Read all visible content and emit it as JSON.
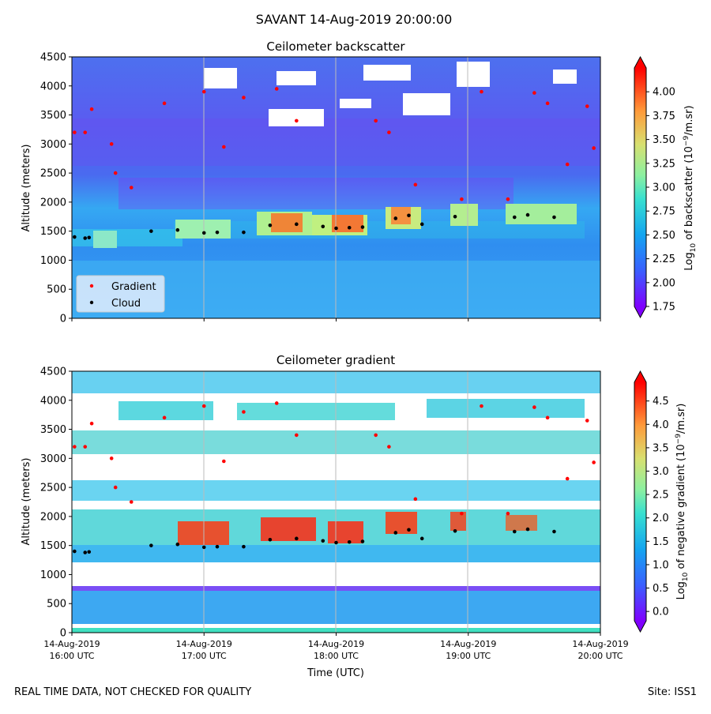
{
  "figure": {
    "suptitle": "SAVANT 14-Aug-2019 20:00:00",
    "footer_left": "REAL TIME DATA, NOT CHECKED FOR QUALITY",
    "footer_right": "Site: ISS1",
    "xlabel": "Time (UTC)",
    "time_ticks": [
      {
        "date": "14-Aug-2019",
        "time": "16:00 UTC"
      },
      {
        "date": "14-Aug-2019",
        "time": "17:00 UTC"
      },
      {
        "date": "14-Aug-2019",
        "time": "18:00 UTC"
      },
      {
        "date": "14-Aug-2019",
        "time": "19:00 UTC"
      },
      {
        "date": "14-Aug-2019",
        "time": "20:00 UTC"
      }
    ]
  },
  "chart_data": [
    {
      "type": "heatmap",
      "title": "Ceilometer backscatter",
      "ylabel": "Altitude (meters)",
      "ylim": [
        0,
        4500
      ],
      "yticks": [
        0,
        500,
        1000,
        1500,
        2000,
        2500,
        3000,
        3500,
        4000,
        4500
      ],
      "xlim": [
        "16:00",
        "20:00"
      ],
      "colorbar": {
        "label": "Log10 of backscatter (10^-9/m.sr)",
        "label_parts": [
          "Log",
          "10",
          " of backscatter (10",
          "−9",
          "/m.sr)"
        ],
        "min": 1.75,
        "max": 4.25,
        "ticks": [
          "1.75",
          "2.00",
          "2.25",
          "2.50",
          "2.75",
          "3.00",
          "3.25",
          "3.50",
          "3.75",
          "4.00"
        ],
        "tick_values": [
          1.75,
          2.0,
          2.25,
          2.5,
          2.75,
          3.0,
          3.25,
          3.5,
          3.75,
          4.0
        ]
      },
      "legend": {
        "location": "lower-left",
        "entries": [
          {
            "label": "Gradient",
            "color": "#ff0000"
          },
          {
            "label": "Cloud",
            "color": "#000000"
          }
        ]
      },
      "cloud_layer": [
        {
          "t": 0.02,
          "alt": 1400
        },
        {
          "t": 0.1,
          "alt": 1380
        },
        {
          "t": 0.13,
          "alt": 1390
        },
        {
          "t": 0.6,
          "alt": 1500
        },
        {
          "t": 0.8,
          "alt": 1520
        },
        {
          "t": 1.0,
          "alt": 1470
        },
        {
          "t": 1.1,
          "alt": 1480
        },
        {
          "t": 1.3,
          "alt": 1480
        },
        {
          "t": 1.5,
          "alt": 1600
        },
        {
          "t": 1.7,
          "alt": 1620
        },
        {
          "t": 1.9,
          "alt": 1580
        },
        {
          "t": 2.0,
          "alt": 1550
        },
        {
          "t": 2.1,
          "alt": 1560
        },
        {
          "t": 2.2,
          "alt": 1570
        },
        {
          "t": 2.45,
          "alt": 1720
        },
        {
          "t": 2.55,
          "alt": 1770
        },
        {
          "t": 2.65,
          "alt": 1620
        },
        {
          "t": 2.9,
          "alt": 1750
        },
        {
          "t": 3.35,
          "alt": 1740
        },
        {
          "t": 3.45,
          "alt": 1780
        },
        {
          "t": 3.65,
          "alt": 1740
        }
      ],
      "gradient_points": [
        {
          "t": 0.02,
          "alt": 3200
        },
        {
          "t": 0.1,
          "alt": 3200
        },
        {
          "t": 0.15,
          "alt": 3600
        },
        {
          "t": 0.3,
          "alt": 3000
        },
        {
          "t": 0.33,
          "alt": 2500
        },
        {
          "t": 0.45,
          "alt": 2250
        },
        {
          "t": 0.7,
          "alt": 3700
        },
        {
          "t": 1.0,
          "alt": 3900
        },
        {
          "t": 1.15,
          "alt": 2950
        },
        {
          "t": 1.3,
          "alt": 3800
        },
        {
          "t": 1.55,
          "alt": 3950
        },
        {
          "t": 1.7,
          "alt": 3400
        },
        {
          "t": 2.3,
          "alt": 3400
        },
        {
          "t": 2.4,
          "alt": 3200
        },
        {
          "t": 2.6,
          "alt": 2300
        },
        {
          "t": 2.95,
          "alt": 2050
        },
        {
          "t": 3.1,
          "alt": 3900
        },
        {
          "t": 3.3,
          "alt": 2050
        },
        {
          "t": 3.5,
          "alt": 3880
        },
        {
          "t": 3.6,
          "alt": 3700
        },
        {
          "t": 3.75,
          "alt": 2650
        },
        {
          "t": 3.9,
          "alt": 3650
        },
        {
          "t": 3.95,
          "alt": 2930
        }
      ]
    },
    {
      "type": "heatmap",
      "title": "Ceilometer gradient",
      "ylabel": "Altitude (meters)",
      "ylim": [
        0,
        4500
      ],
      "yticks": [
        0,
        500,
        1000,
        1500,
        2000,
        2500,
        3000,
        3500,
        4000,
        4500
      ],
      "xlim": [
        "16:00",
        "20:00"
      ],
      "colorbar": {
        "label": "Log10 of negative gradient (10^-9/m.sr)",
        "label_parts": [
          "Log",
          "10",
          " of negative gradient (10",
          "−9",
          "/m.sr)"
        ],
        "min": -0.2,
        "max": 4.9,
        "ticks": [
          "0.0",
          "0.5",
          "1.0",
          "1.5",
          "2.0",
          "2.5",
          "3.0",
          "3.5",
          "4.0",
          "4.5"
        ],
        "tick_values": [
          0.0,
          0.5,
          1.0,
          1.5,
          2.0,
          2.5,
          3.0,
          3.5,
          4.0,
          4.5
        ]
      }
    }
  ]
}
